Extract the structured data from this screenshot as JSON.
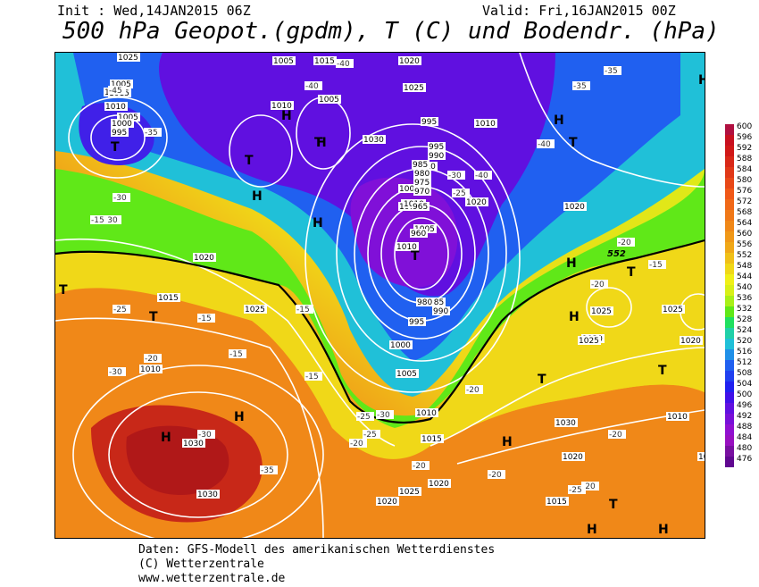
{
  "header": {
    "init": "Init : Wed,14JAN2015 06Z",
    "valid": "Valid: Fri,16JAN2015 00Z",
    "title": "500 hPa Geopot.(gpdm), T (C) und Bodendr. (hPa)"
  },
  "footer": {
    "line1": "Daten: GFS-Modell des amerikanischen Wetterdienstes",
    "line2": "(C) Wetterzentrale",
    "line3": "www.wetterzentrale.de"
  },
  "legend": {
    "values": [
      "600",
      "596",
      "592",
      "588",
      "584",
      "580",
      "576",
      "572",
      "568",
      "564",
      "560",
      "556",
      "552",
      "548",
      "544",
      "540",
      "536",
      "532",
      "528",
      "524",
      "520",
      "516",
      "512",
      "508",
      "504",
      "500",
      "496",
      "492",
      "488",
      "484",
      "480",
      "476"
    ],
    "colors": [
      "#b01040",
      "#c81020",
      "#d01818",
      "#d82818",
      "#e03818",
      "#e84818",
      "#f05818",
      "#f06818",
      "#f07818",
      "#f08818",
      "#f09818",
      "#f0a818",
      "#f0c018",
      "#f0d818",
      "#f0f018",
      "#d8f018",
      "#a8f018",
      "#60e818",
      "#20e060",
      "#20d0a8",
      "#20c0d8",
      "#2090e8",
      "#2060f0",
      "#2040f0",
      "#2020f0",
      "#4010e8",
      "#6010e0",
      "#7810d8",
      "#9010d0",
      "#9810c0",
      "#7810a0",
      "#600890"
    ]
  },
  "map": {
    "isobars": [
      "1025",
      "1005",
      "1020",
      "1015",
      "1010",
      "1005",
      "1000",
      "995",
      "1005",
      "1015",
      "1020",
      "1025",
      "1030",
      "1000",
      "995",
      "1010",
      "1010",
      "1010",
      "1015",
      "1000",
      "1010",
      "1010",
      "1005",
      "1020",
      "1005",
      "995",
      "990",
      "985",
      "980",
      "975",
      "970",
      "965",
      "960",
      "990",
      "985",
      "980",
      "995",
      "1000",
      "1005",
      "1010",
      "1015",
      "1020",
      "1025",
      "1030",
      "1030",
      "1025",
      "1020",
      "1015",
      "1010",
      "1020",
      "1025",
      "1020",
      "1025",
      "1025",
      "1020",
      "1010",
      "1030",
      "1020",
      "1015",
      "1020",
      "1025"
    ],
    "temps": [
      "-45",
      "-35",
      "-40",
      "-40",
      "-35",
      "-35",
      "-40",
      "-40",
      "-30",
      "-30",
      "-30",
      "-25",
      "-20",
      "-20",
      "-15",
      "-15",
      "-30",
      "-25",
      "-25",
      "-20",
      "-20",
      "-20",
      "-20",
      "-25",
      "-20",
      "-15",
      "-20",
      "-15",
      "-15",
      "-15",
      "-25",
      "-30",
      "-30",
      "-35",
      "-20"
    ],
    "highs": [
      "H",
      "H",
      "H",
      "H",
      "H",
      "H",
      "H",
      "H",
      "H",
      "H",
      "H",
      "H",
      "H"
    ],
    "lows": [
      "T",
      "T",
      "T",
      "T",
      "T",
      "T",
      "T",
      "T",
      "T",
      "T",
      "T"
    ],
    "contour_552": "552"
  }
}
